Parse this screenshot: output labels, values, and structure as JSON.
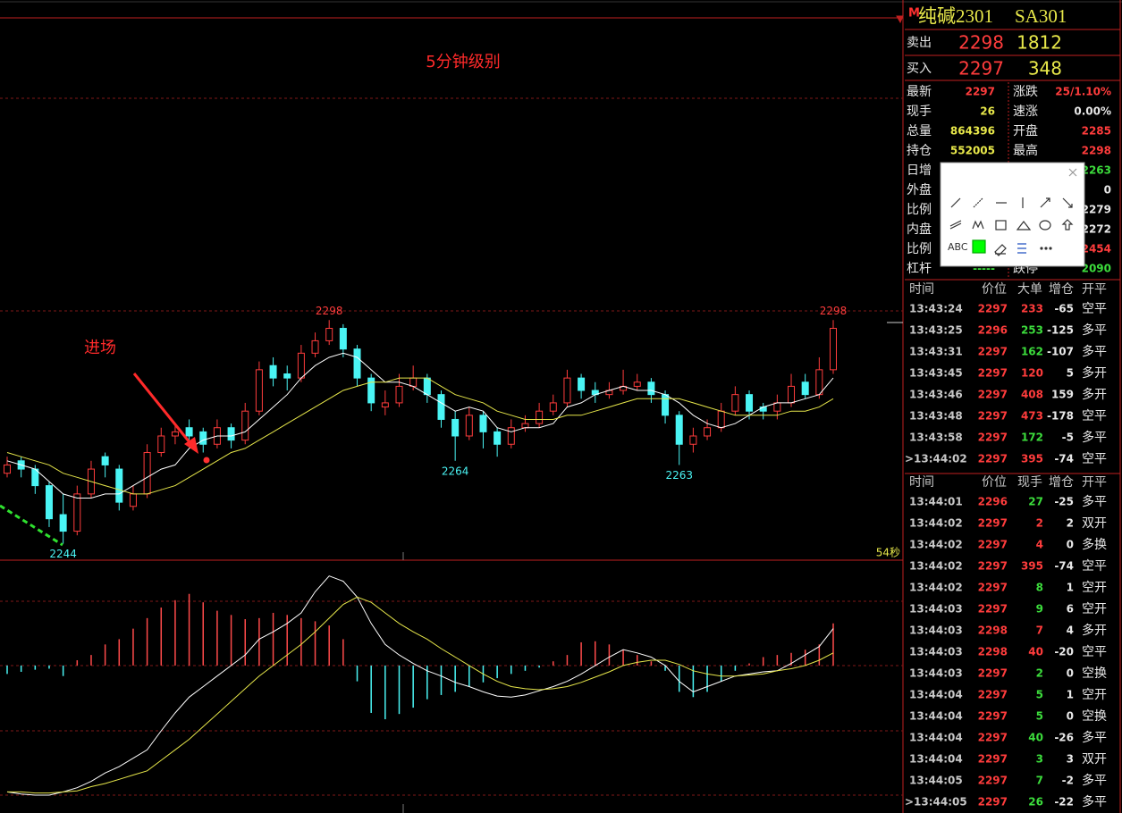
{
  "chart_data": [
    {
      "type": "candlestick",
      "ylim": [
        2240,
        2371
      ],
      "candles": [
        [
          2261,
          2265,
          2260,
          2263
        ],
        [
          2264,
          2265,
          2260,
          2262
        ],
        [
          2262,
          2263,
          2256,
          2258
        ],
        [
          2258,
          2259,
          2248,
          2250
        ],
        [
          2251,
          2256,
          2244,
          2247
        ],
        [
          2247,
          2258,
          2246,
          2256
        ],
        [
          2256,
          2264,
          2255,
          2262
        ],
        [
          2265,
          2266,
          2260,
          2263
        ],
        [
          2262,
          2263,
          2252,
          2254
        ],
        [
          2253,
          2258,
          2252,
          2256
        ],
        [
          2256,
          2268,
          2255,
          2266
        ],
        [
          2266,
          2272,
          2265,
          2270
        ],
        [
          2270,
          2273,
          2268,
          2271
        ],
        [
          2272,
          2274,
          2268,
          2270
        ],
        [
          2271,
          2272,
          2266,
          2268
        ],
        [
          2268,
          2274,
          2267,
          2272
        ],
        [
          2272,
          2273,
          2267,
          2269
        ],
        [
          2269,
          2278,
          2268,
          2276
        ],
        [
          2276,
          2288,
          2275,
          2286
        ],
        [
          2287,
          2289,
          2282,
          2284
        ],
        [
          2285,
          2287,
          2281,
          2284
        ],
        [
          2284,
          2292,
          2283,
          2290
        ],
        [
          2290,
          2295,
          2289,
          2293
        ],
        [
          2293,
          2298,
          2292,
          2296
        ],
        [
          2296,
          2297,
          2289,
          2291
        ],
        [
          2291,
          2292,
          2282,
          2284
        ],
        [
          2284,
          2285,
          2276,
          2278
        ],
        [
          2277,
          2281,
          2275,
          2278
        ],
        [
          2278,
          2285,
          2277,
          2282
        ],
        [
          2282,
          2287,
          2281,
          2284
        ],
        [
          2284,
          2285,
          2278,
          2280
        ],
        [
          2280,
          2281,
          2272,
          2274
        ],
        [
          2274,
          2276,
          2264,
          2270
        ],
        [
          2270,
          2277,
          2269,
          2275
        ],
        [
          2275,
          2276,
          2267,
          2271
        ],
        [
          2271,
          2272,
          2265,
          2268
        ],
        [
          2268,
          2274,
          2267,
          2272
        ],
        [
          2272,
          2275,
          2271,
          2273
        ],
        [
          2273,
          2278,
          2272,
          2276
        ],
        [
          2276,
          2280,
          2275,
          2278
        ],
        [
          2278,
          2286,
          2277,
          2284
        ],
        [
          2284,
          2285,
          2279,
          2281
        ],
        [
          2281,
          2283,
          2278,
          2280
        ],
        [
          2280,
          2283,
          2279,
          2281
        ],
        [
          2281,
          2286,
          2280,
          2282
        ],
        [
          2282,
          2285,
          2281,
          2283
        ],
        [
          2283,
          2284,
          2278,
          2280
        ],
        [
          2280,
          2281,
          2273,
          2275
        ],
        [
          2275,
          2276,
          2263,
          2268
        ],
        [
          2268,
          2272,
          2266,
          2270
        ],
        [
          2270,
          2274,
          2269,
          2272
        ],
        [
          2272,
          2278,
          2271,
          2276
        ],
        [
          2276,
          2282,
          2275,
          2280
        ],
        [
          2280,
          2281,
          2274,
          2276
        ],
        [
          2277,
          2278,
          2274,
          2276
        ],
        [
          2276,
          2280,
          2274,
          2278
        ],
        [
          2278,
          2285,
          2277,
          2282
        ],
        [
          2283,
          2285,
          2279,
          2280
        ],
        [
          2280,
          2289,
          2279,
          2286
        ],
        [
          2286,
          2298,
          2285,
          2296
        ]
      ],
      "series": [
        {
          "color": "#ffffff",
          "values": [
            2264,
            2263,
            2262,
            2259,
            2256,
            2255,
            2255,
            2256,
            2256,
            2258,
            2260,
            2262,
            2263,
            2267,
            2269,
            2270,
            2270,
            2271,
            2274,
            2277,
            2280,
            2284,
            2287,
            2289,
            2290,
            2289,
            2286,
            2283,
            2283,
            2282,
            2280,
            2278,
            2276,
            2277,
            2276,
            2272,
            2271,
            2272,
            2272,
            2273,
            2277,
            2278,
            2280,
            2281,
            2282,
            2281,
            2281,
            2280,
            2278,
            2275,
            2273,
            2272,
            2273,
            2275,
            2277,
            2278,
            2278,
            2279,
            2280,
            2284
          ]
        },
        {
          "color": "#e6e64a",
          "values": [
            2266,
            2265,
            2264,
            2263,
            2261,
            2260,
            2259,
            2258,
            2257,
            2256,
            2256,
            2257,
            2258,
            2260,
            2262,
            2264,
            2266,
            2267,
            2269,
            2271,
            2273,
            2275,
            2277,
            2279,
            2281,
            2282,
            2283,
            2283,
            2284,
            2284,
            2284,
            2282,
            2280,
            2279,
            2278,
            2276,
            2275,
            2274,
            2274,
            2274,
            2275,
            2275,
            2276,
            2277,
            2278,
            2279,
            2279,
            2279,
            2279,
            2278,
            2277,
            2276,
            2275,
            2275,
            2275,
            2275,
            2276,
            2276,
            2277,
            2279
          ]
        }
      ],
      "extremes": [
        2244,
        2298,
        2264,
        2263,
        2298
      ],
      "annotations": [
        "5分钟级别",
        "进场"
      ],
      "timer": "54秒"
    },
    {
      "type": "macd",
      "ylim": [
        -14,
        10
      ],
      "values": [
        -0.8,
        -0.6,
        -0.4,
        -0.3,
        -1,
        0.5,
        1,
        2,
        2.5,
        3.5,
        4.5,
        5.5,
        6.2,
        6.8,
        6,
        5.2,
        4.8,
        4.4,
        4.5,
        5,
        4.8,
        4.5,
        4.2,
        3.8,
        2.5,
        -1.5,
        -4.5,
        -5.1,
        -4.6,
        -4,
        -3.2,
        -2.8,
        -2.5,
        -2,
        -1.6,
        -1.2,
        -0.8,
        -0.5,
        -0.2,
        0.4,
        1,
        2.2,
        2.3,
        2,
        1.5,
        1,
        0.4,
        -0.5,
        -2.5,
        -3,
        -2.5,
        -1.5,
        -0.5,
        0.2,
        0.8,
        1,
        1.2,
        1.5,
        2,
        4
      ],
      "series": [
        {
          "color": "#ffffff",
          "values": [
            -12,
            -12.2,
            -12.3,
            -12.3,
            -12,
            -11.6,
            -11,
            -10.2,
            -9.6,
            -8.8,
            -8,
            -6.2,
            -4.5,
            -3,
            -2,
            -1,
            0,
            1,
            2.5,
            3.2,
            4,
            5,
            7,
            8.5,
            8,
            6.5,
            4,
            2,
            1,
            0.2,
            -0.5,
            -1,
            -1.6,
            -2,
            -2.5,
            -2.9,
            -3,
            -2.8,
            -2.4,
            -2,
            -1.5,
            -0.8,
            0,
            0.8,
            1.5,
            1.2,
            0.8,
            0,
            -1.5,
            -2.5,
            -2,
            -1.5,
            -1,
            -0.8,
            -0.6,
            -0.5,
            0.2,
            1,
            1.8,
            3.5
          ]
        },
        {
          "color": "#e6e64a",
          "values": [
            -12,
            -12,
            -12.1,
            -12.1,
            -12,
            -11.9,
            -11.5,
            -11.2,
            -10.8,
            -10.4,
            -10,
            -9,
            -8,
            -7,
            -5.8,
            -4.6,
            -3.4,
            -2.2,
            -1,
            0,
            1,
            2,
            3.2,
            4.5,
            5.8,
            6.5,
            6,
            5,
            4,
            3.2,
            2.5,
            1.6,
            0.8,
            0,
            -0.8,
            -1.5,
            -2,
            -2.2,
            -2.3,
            -2.2,
            -2,
            -1.6,
            -1.1,
            -0.6,
            0,
            0.3,
            0.5,
            0.5,
            0.1,
            -0.5,
            -0.8,
            -1,
            -1,
            -0.9,
            -0.8,
            -0.5,
            -0.3,
            0,
            0.5,
            1.2
          ]
        }
      ]
    }
  ],
  "quote": {
    "flag": "M",
    "name": "纯碱2301",
    "code": "SA301",
    "ask": {
      "label": "卖出",
      "price": 2298,
      "volume": 1812
    },
    "bid": {
      "label": "买入",
      "price": 2297,
      "volume": 348
    },
    "stats": [
      {
        "l": "最新",
        "lv": 2297,
        "lc": "#ff3c3c",
        "r": "涨跌",
        "rv": "25/1.10%",
        "rc": "#ff3c3c"
      },
      {
        "l": "现手",
        "lv": 26,
        "lc": "#e8e84a",
        "r": "速涨",
        "rv": "0.00%",
        "rc": "#e8e8e8"
      },
      {
        "l": "总量",
        "lv": 864396,
        "lc": "#e8e84a",
        "r": "开盘",
        "rv": 2285,
        "rc": "#ff3c3c"
      },
      {
        "l": "持仓",
        "lv": 552005,
        "lc": "#e8e84a",
        "r": "最高",
        "rv": 2298,
        "rc": "#ff3c3c"
      },
      {
        "l": "日增",
        "rv": 2263,
        "rc": "#3cdc3c"
      },
      {
        "l": "外盘",
        "rv": 0,
        "rc": "#e8e8e8"
      },
      {
        "l": "比例",
        "rv": 2279,
        "rc": "#e8e8e8"
      },
      {
        "l": "内盘",
        "rv": 2272,
        "rc": "#e8e8e8"
      },
      {
        "l": "比例",
        "rv": 2454,
        "rc": "#ff3c3c"
      },
      {
        "l": "杠杆",
        "lv": "-----",
        "lc": "#3cdc3c",
        "r": "跌停",
        "rv": 2090,
        "rc": "#3cdc3c"
      }
    ]
  },
  "tables": [
    {
      "headers": [
        "时间",
        "价位",
        "大单",
        "增仓",
        "开平"
      ],
      "rows": [
        [
          "13:43:24",
          2297,
          233,
          -65,
          "空平"
        ],
        [
          "13:43:25",
          2296,
          253,
          -125,
          "多平"
        ],
        [
          "13:43:31",
          2297,
          162,
          -107,
          "多平"
        ],
        [
          "13:43:45",
          2297,
          120,
          5,
          "多开"
        ],
        [
          "13:43:46",
          2297,
          408,
          159,
          "多开"
        ],
        [
          "13:43:48",
          2297,
          473,
          -178,
          "空平"
        ],
        [
          "13:43:58",
          2297,
          172,
          -5,
          "多平"
        ],
        [
          ">13:44:02",
          2297,
          395,
          -74,
          "空平"
        ]
      ],
      "vol_colors": [
        "#ff3c3c",
        "#3cdc3c",
        "#3cdc3c",
        "#ff3c3c",
        "#ff3c3c",
        "#ff3c3c",
        "#3cdc3c",
        "#ff3c3c"
      ]
    },
    {
      "headers": [
        "时间",
        "价位",
        "现手",
        "增仓",
        "开平"
      ],
      "rows": [
        [
          "13:44:01",
          2296,
          27,
          -25,
          "多平"
        ],
        [
          "13:44:02",
          2297,
          2,
          2,
          "双开"
        ],
        [
          "13:44:02",
          2297,
          4,
          0,
          "多换"
        ],
        [
          "13:44:02",
          2297,
          395,
          -74,
          "空平"
        ],
        [
          "13:44:02",
          2297,
          8,
          1,
          "空开"
        ],
        [
          "13:44:03",
          2297,
          9,
          6,
          "空开"
        ],
        [
          "13:44:03",
          2298,
          7,
          4,
          "多开"
        ],
        [
          "13:44:03",
          2298,
          40,
          -20,
          "空平"
        ],
        [
          "13:44:03",
          2297,
          2,
          0,
          "空换"
        ],
        [
          "13:44:04",
          2297,
          5,
          1,
          "空开"
        ],
        [
          "13:44:04",
          2297,
          5,
          0,
          "空换"
        ],
        [
          "13:44:04",
          2297,
          40,
          -26,
          "多平"
        ],
        [
          "13:44:04",
          2297,
          3,
          3,
          "双开"
        ],
        [
          "13:44:05",
          2297,
          7,
          -2,
          "多平"
        ],
        [
          ">13:44:05",
          2297,
          26,
          -22,
          "多平"
        ]
      ],
      "vol_colors": [
        "#3cdc3c",
        "#ff3c3c",
        "#ff3c3c",
        "#ff3c3c",
        "#3cdc3c",
        "#3cdc3c",
        "#ff3c3c",
        "#ff3c3c",
        "#3cdc3c",
        "#3cdc3c",
        "#3cdc3c",
        "#3cdc3c",
        "#3cdc3c",
        "#3cdc3c",
        "#3cdc3c"
      ]
    }
  ],
  "toolbar": {
    "abc": "ABC"
  }
}
